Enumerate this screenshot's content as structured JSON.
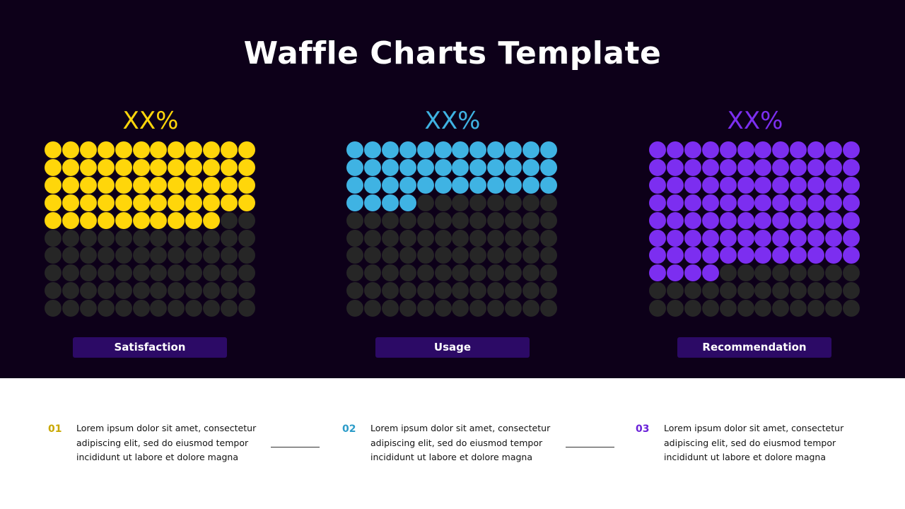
{
  "title": "Waffle Charts Template",
  "chart_data": [
    {
      "type": "waffle",
      "label": "Satisfaction",
      "value_label": "XX%",
      "filled": 58,
      "total": 120,
      "columns": 12,
      "color": "#ffd60a"
    },
    {
      "type": "waffle",
      "label": "Usage",
      "value_label": "XX%",
      "filled": 40,
      "total": 120,
      "columns": 12,
      "color": "#3fb3e3"
    },
    {
      "type": "waffle",
      "label": "Recommendation",
      "value_label": "XX%",
      "filled": 88,
      "total": 120,
      "columns": 12,
      "color": "#7c2ef0"
    }
  ],
  "empty_color": "#262626",
  "notes": [
    {
      "num": "01",
      "color": "#c9a800",
      "line1": "Lorem ipsum dolor sit amet, consectetur",
      "line2": "adipiscing elit, sed do eiusmod tempor",
      "line3": "incididunt ut labore et dolore magna"
    },
    {
      "num": "02",
      "color": "#2c9cc9",
      "line1": "Lorem ipsum dolor sit amet, consectetur",
      "line2": "adipiscing elit, sed do eiusmod tempor",
      "line3": "incididunt ut labore et dolore magna"
    },
    {
      "num": "03",
      "color": "#6a22d8",
      "line1": "Lorem ipsum dolor sit amet, consectetur",
      "line2": "adipiscing elit, sed do eiusmod tempor",
      "line3": "incididunt ut labore et dolore magna"
    }
  ]
}
